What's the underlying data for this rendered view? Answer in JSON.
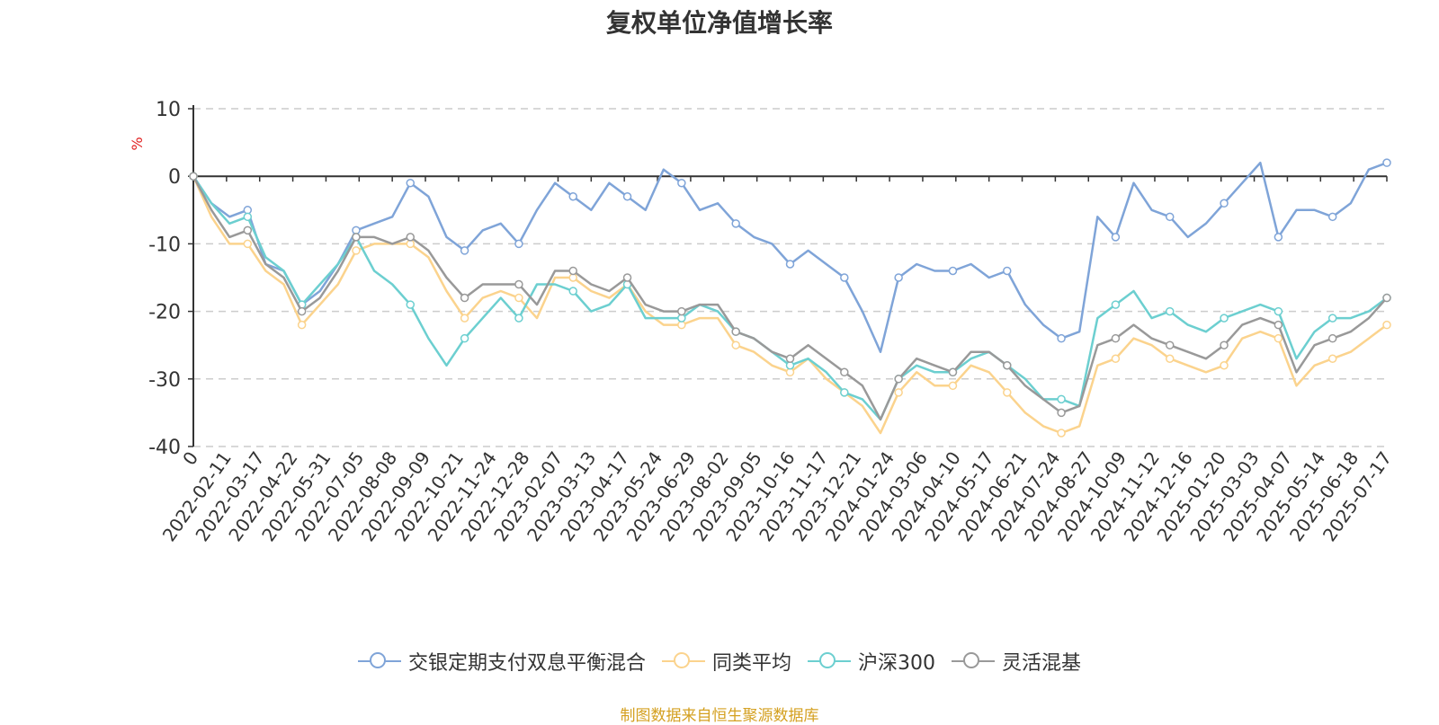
{
  "chart_data": {
    "type": "line",
    "title": "复权单位净值增长率",
    "ylabel": "%",
    "ylim": [
      -40,
      10
    ],
    "yticks": [
      10,
      0,
      -10,
      -20,
      -30,
      -40
    ],
    "grid": true,
    "legend_position": "bottom",
    "x_tick_labels": [
      "0",
      "2022-02-11",
      "2022-03-17",
      "2022-04-22",
      "2022-05-31",
      "2022-07-05",
      "2022-08-08",
      "2022-09-09",
      "2022-10-21",
      "2022-11-24",
      "2022-12-28",
      "2023-02-07",
      "2023-03-13",
      "2023-04-17",
      "2023-05-24",
      "2023-06-29",
      "2023-08-02",
      "2023-09-05",
      "2023-10-16",
      "2023-11-17",
      "2023-12-21",
      "2024-01-24",
      "2024-03-06",
      "2024-04-10",
      "2024-05-17",
      "2024-06-21",
      "2024-07-24",
      "2024-08-27",
      "2024-10-09",
      "2024-11-12",
      "2024-12-16",
      "2025-01-20",
      "2025-03-03",
      "2025-04-07",
      "2025-05-14",
      "2025-06-18",
      "2025-07-17"
    ],
    "series": [
      {
        "name": "交银定期支付双息平衡混合",
        "color": "#7fa4d8",
        "values": [
          0,
          -4,
          -6,
          -5,
          -13,
          -14,
          -19,
          -17,
          -13,
          -8,
          -7,
          -6,
          -1,
          -3,
          -9,
          -11,
          -8,
          -7,
          -10,
          -5,
          -1,
          -3,
          -5,
          -1,
          -3,
          -5,
          1,
          -1,
          -5,
          -4,
          -7,
          -9,
          -10,
          -13,
          -11,
          -13,
          -15,
          -20,
          -26,
          -15,
          -13,
          -14,
          -14,
          -13,
          -15,
          -14,
          -19,
          -22,
          -24,
          -23,
          -6,
          -9,
          -1,
          -5,
          -6,
          -9,
          -7,
          -4,
          -1,
          2,
          -9,
          -5,
          -5,
          -6,
          -4,
          1,
          2
        ]
      },
      {
        "name": "同类平均",
        "color": "#fbd38d",
        "values": [
          0,
          -6,
          -10,
          -10,
          -14,
          -16,
          -22,
          -19,
          -16,
          -11,
          -10,
          -10,
          -10,
          -12,
          -17,
          -21,
          -18,
          -17,
          -18,
          -21,
          -15,
          -15,
          -17,
          -18,
          -16,
          -20,
          -22,
          -22,
          -21,
          -21,
          -25,
          -26,
          -28,
          -29,
          -27,
          -30,
          -32,
          -34,
          -38,
          -32,
          -29,
          -31,
          -31,
          -28,
          -29,
          -32,
          -35,
          -37,
          -38,
          -37,
          -28,
          -27,
          -24,
          -25,
          -27,
          -28,
          -29,
          -28,
          -24,
          -23,
          -24,
          -31,
          -28,
          -27,
          -26,
          -24,
          -22
        ]
      },
      {
        "name": "沪深300",
        "color": "#6ccfd0",
        "values": [
          0,
          -4,
          -7,
          -6,
          -12,
          -14,
          -19,
          -16,
          -13,
          -9,
          -14,
          -16,
          -19,
          -24,
          -28,
          -24,
          -21,
          -18,
          -21,
          -16,
          -16,
          -17,
          -20,
          -19,
          -16,
          -21,
          -21,
          -21,
          -19,
          -20,
          -23,
          -24,
          -26,
          -28,
          -27,
          -29,
          -32,
          -33,
          -36,
          -30,
          -28,
          -29,
          -29,
          -27,
          -26,
          -28,
          -30,
          -33,
          -33,
          -34,
          -21,
          -19,
          -17,
          -21,
          -20,
          -22,
          -23,
          -21,
          -20,
          -19,
          -20,
          -27,
          -23,
          -21,
          -21,
          -20,
          -18
        ]
      },
      {
        "name": "灵活混基",
        "color": "#999999",
        "values": [
          0,
          -5,
          -9,
          -8,
          -13,
          -15,
          -20,
          -18,
          -14,
          -9,
          -9,
          -10,
          -9,
          -11,
          -15,
          -18,
          -16,
          -16,
          -16,
          -19,
          -14,
          -14,
          -16,
          -17,
          -15,
          -19,
          -20,
          -20,
          -19,
          -19,
          -23,
          -24,
          -26,
          -27,
          -25,
          -27,
          -29,
          -31,
          -36,
          -30,
          -27,
          -28,
          -29,
          -26,
          -26,
          -28,
          -31,
          -33,
          -35,
          -34,
          -25,
          -24,
          -22,
          -24,
          -25,
          -26,
          -27,
          -25,
          -22,
          -21,
          -22,
          -29,
          -25,
          -24,
          -23,
          -21,
          -18
        ]
      }
    ]
  },
  "source_note": "制图数据来自恒生聚源数据库"
}
